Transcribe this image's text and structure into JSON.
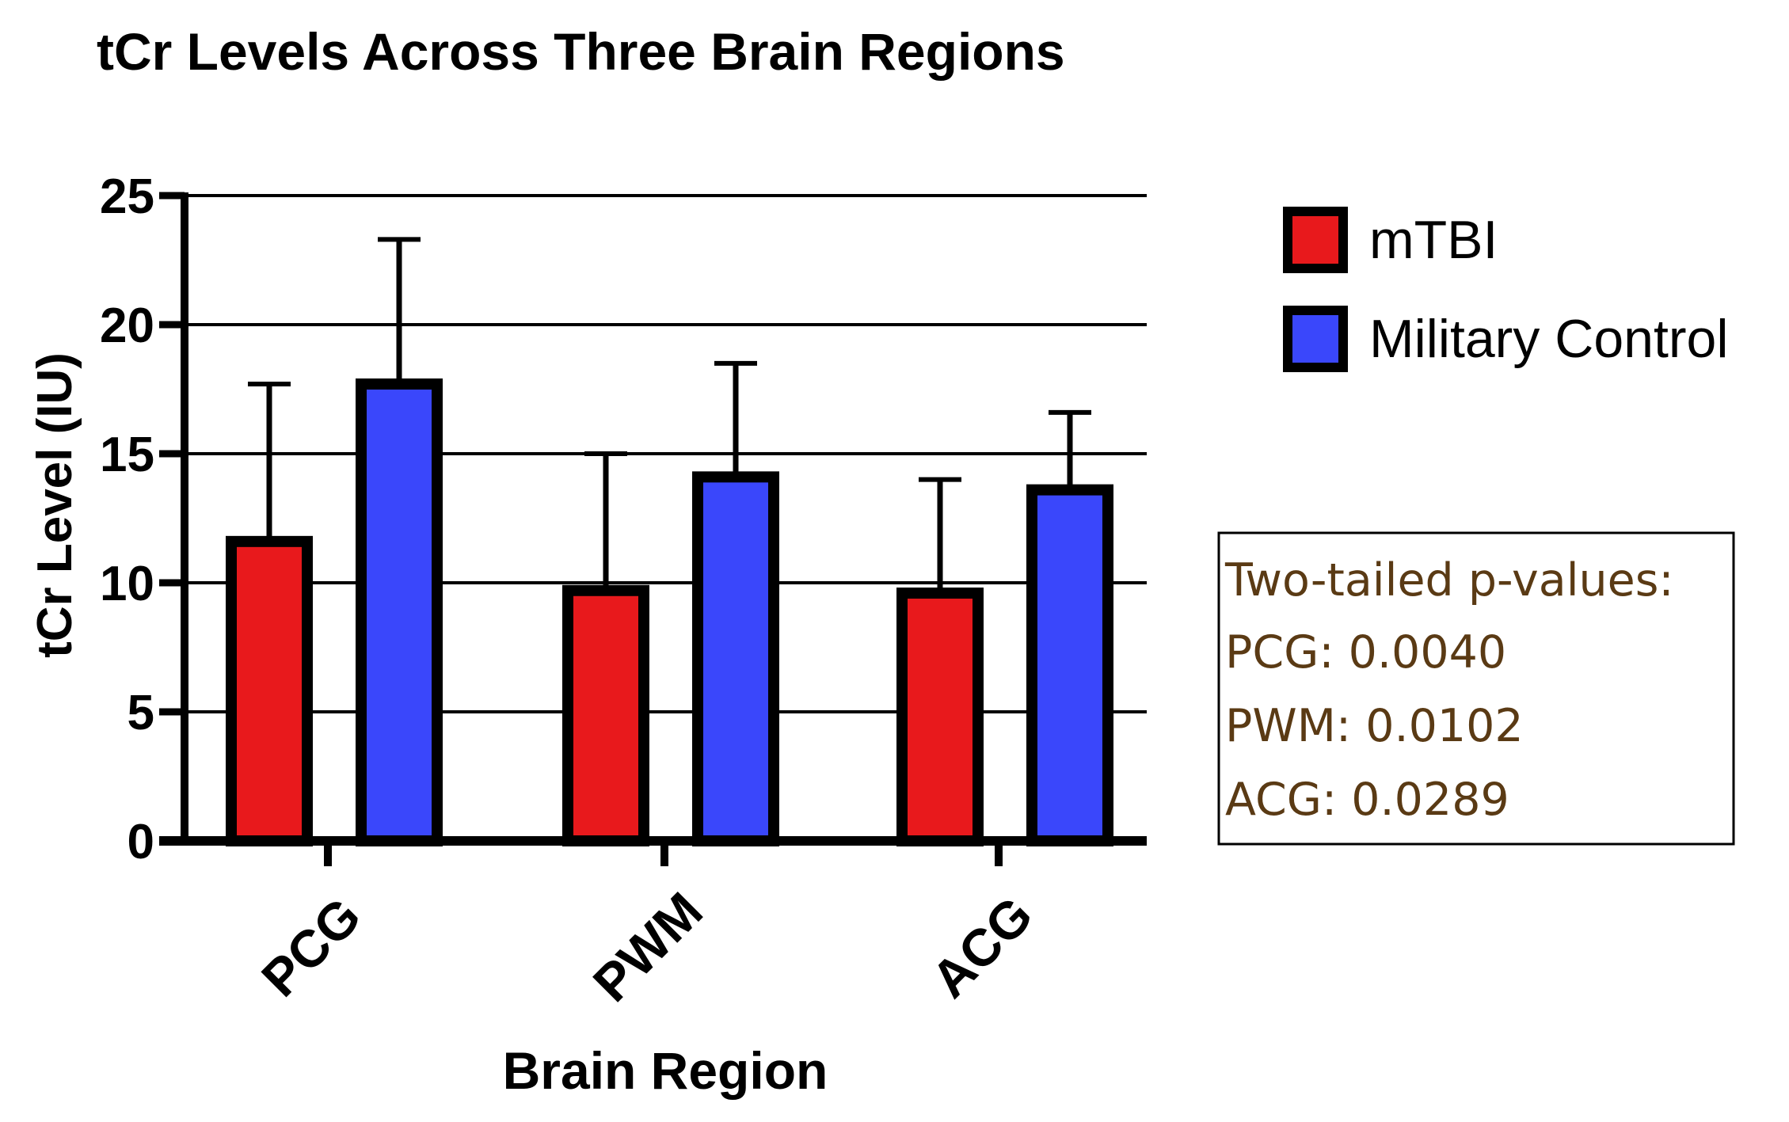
{
  "chart_data": {
    "type": "bar",
    "title": "tCr Levels Across Three Brain Regions",
    "xlabel": "Brain Region",
    "ylabel": "tCr Level (IU)",
    "categories": [
      "PCG",
      "PWM",
      "ACG"
    ],
    "ylim": [
      0,
      25
    ],
    "yticks": [
      "0",
      "5",
      "10",
      "15",
      "20",
      "25"
    ],
    "grid": true,
    "legend_position": "top-right",
    "series": [
      {
        "name": "mTBI",
        "color": "#e8191c",
        "values": [
          11.6,
          9.7,
          9.6
        ],
        "error": [
          6.1,
          5.3,
          4.4
        ]
      },
      {
        "name": "Military Control",
        "color": "#3a47fb",
        "values": [
          17.7,
          14.1,
          13.6
        ],
        "error": [
          5.6,
          4.4,
          3.0
        ]
      }
    ],
    "annotation": {
      "lines": [
        "Two-tailed p-values:",
        "PCG: 0.0040",
        "PWM: 0.0102",
        "ACG: 0.0289"
      ],
      "color": "#5a3a14"
    }
  }
}
